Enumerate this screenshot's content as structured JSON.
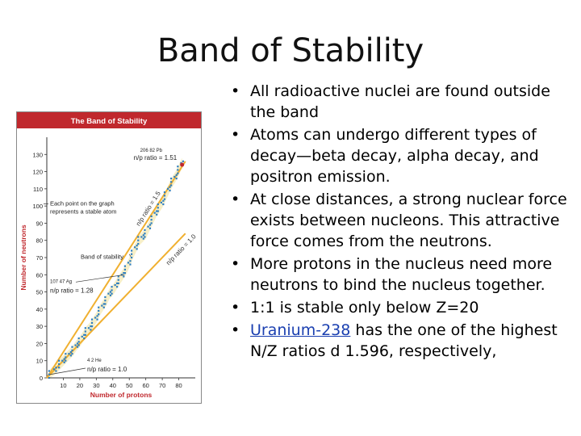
{
  "slide": {
    "title": "Band of Stability",
    "bullets": [
      "All radioactive nuclei are found outside the band",
      "Atoms can undergo different types of decay—beta decay, alpha decay, and positron emission.",
      "At close distances, a strong nuclear force exists between nucleons. This attractive force comes from the neutrons.",
      "More protons in the nucleus need more neutrons to bind the nucleus together.",
      " 1:1 is stable only below Z=20"
    ],
    "last_bullet": {
      "link_text": "Uranium-238",
      "rest_text": " has the one of the highest N/Z ratios d 1.596, respectively,"
    }
  },
  "chart_data": {
    "type": "scatter",
    "title": "The Band of Stability",
    "xlabel": "Number of protons",
    "ylabel": "Number of neutrons",
    "xlim": [
      0,
      90
    ],
    "ylim": [
      0,
      140
    ],
    "x_ticks": [
      10,
      20,
      30,
      40,
      50,
      60,
      70,
      80
    ],
    "y_ticks": [
      0,
      10,
      20,
      30,
      40,
      50,
      60,
      70,
      80,
      90,
      100,
      110,
      120,
      130
    ],
    "reference_lines": [
      {
        "label": "n/p ratio = 1.5",
        "slope": 1.5
      },
      {
        "label": "n/p ratio = 1.0",
        "slope": 1.0
      }
    ],
    "annotations": [
      {
        "nuclide": "206 82 Pb",
        "text": "n/p ratio = 1.51",
        "x": 82,
        "y": 124
      },
      {
        "nuclide": "107 47 Ag",
        "text": "n/p ratio = 1.28",
        "x": 47,
        "y": 60
      },
      {
        "nuclide": "4 2 He",
        "text": "n/p ratio = 1.0",
        "x": 2,
        "y": 2
      },
      {
        "text": "Each point on the graph represents a stable atom",
        "x": 62,
        "y": 105
      },
      {
        "text": "Band of stability",
        "x": 50,
        "y": 72
      }
    ],
    "band": [
      {
        "x": 2,
        "y": 2
      },
      {
        "x": 5,
        "y": 5
      },
      {
        "x": 8,
        "y": 8
      },
      {
        "x": 10,
        "y": 10
      },
      {
        "x": 12,
        "y": 12
      },
      {
        "x": 14,
        "y": 14
      },
      {
        "x": 16,
        "y": 16
      },
      {
        "x": 18,
        "y": 19
      },
      {
        "x": 20,
        "y": 21
      },
      {
        "x": 22,
        "y": 24
      },
      {
        "x": 24,
        "y": 27
      },
      {
        "x": 26,
        "y": 29
      },
      {
        "x": 28,
        "y": 32
      },
      {
        "x": 30,
        "y": 35
      },
      {
        "x": 32,
        "y": 39
      },
      {
        "x": 34,
        "y": 42
      },
      {
        "x": 36,
        "y": 45
      },
      {
        "x": 38,
        "y": 49
      },
      {
        "x": 40,
        "y": 51
      },
      {
        "x": 42,
        "y": 54
      },
      {
        "x": 44,
        "y": 57
      },
      {
        "x": 46,
        "y": 60
      },
      {
        "x": 48,
        "y": 63
      },
      {
        "x": 50,
        "y": 67
      },
      {
        "x": 52,
        "y": 72
      },
      {
        "x": 54,
        "y": 76
      },
      {
        "x": 56,
        "y": 80
      },
      {
        "x": 58,
        "y": 82
      },
      {
        "x": 60,
        "y": 84
      },
      {
        "x": 62,
        "y": 88
      },
      {
        "x": 64,
        "y": 92
      },
      {
        "x": 66,
        "y": 96
      },
      {
        "x": 68,
        "y": 99
      },
      {
        "x": 70,
        "y": 102
      },
      {
        "x": 72,
        "y": 106
      },
      {
        "x": 74,
        "y": 110
      },
      {
        "x": 76,
        "y": 114
      },
      {
        "x": 78,
        "y": 117
      },
      {
        "x": 80,
        "y": 121
      },
      {
        "x": 82,
        "y": 125
      }
    ],
    "colors": {
      "header": "#c0282d",
      "ref_line": "#f0b030",
      "points": "#2f7fc1",
      "band_fill": "#f3e8b0",
      "label": "#c0282d"
    }
  }
}
